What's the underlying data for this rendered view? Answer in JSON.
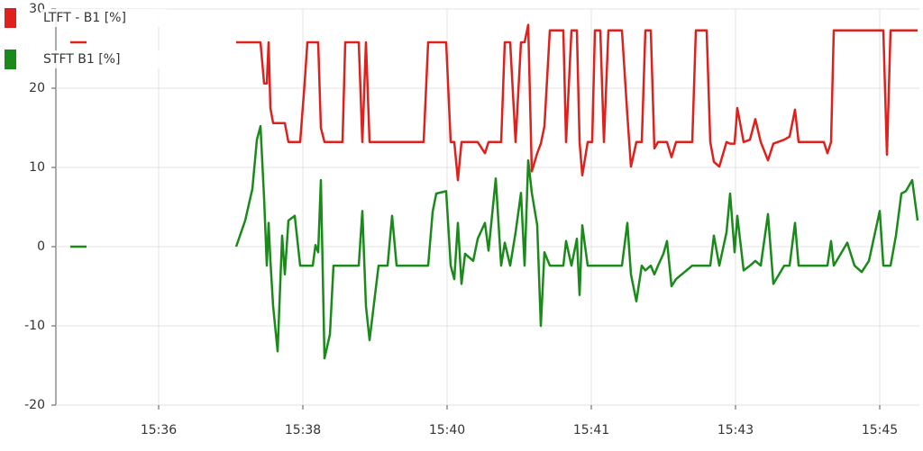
{
  "chart_data": {
    "type": "line",
    "x": [
      35.42,
      35.6,
      36.5,
      37.26,
      37.36,
      37.44,
      37.49,
      37.53,
      37.57,
      37.6,
      37.62,
      37.64,
      37.67,
      37.72,
      37.77,
      37.8,
      37.84,
      37.91,
      37.97,
      38.02,
      38.05,
      38.11,
      38.14,
      38.17,
      38.2,
      38.24,
      38.3,
      38.34,
      38.44,
      38.47,
      38.62,
      38.66,
      38.7,
      38.74,
      38.84,
      38.94,
      38.99,
      39.04,
      39.34,
      39.39,
      39.44,
      39.48,
      39.59,
      39.64,
      39.68,
      39.72,
      39.76,
      39.8,
      39.89,
      39.94,
      40.02,
      40.06,
      40.14,
      40.2,
      40.24,
      40.3,
      40.36,
      40.42,
      40.46,
      40.5,
      40.54,
      40.6,
      40.64,
      40.68,
      40.74,
      40.89,
      40.92,
      40.98,
      41.04,
      41.07,
      41.1,
      41.16,
      41.21,
      41.24,
      41.3,
      41.34,
      41.39,
      41.49,
      41.54,
      41.6,
      41.64,
      41.7,
      41.76,
      41.8,
      41.86,
      41.9,
      41.94,
      42.0,
      42.04,
      42.09,
      42.14,
      42.32,
      42.36,
      42.48,
      42.52,
      42.56,
      42.62,
      42.7,
      42.74,
      42.79,
      42.82,
      42.89,
      42.96,
      43.02,
      43.08,
      43.16,
      43.22,
      43.34,
      43.4,
      43.46,
      43.5,
      43.64,
      43.78,
      43.82,
      43.86,
      43.89,
      44.04,
      44.12,
      44.2,
      44.28,
      44.4,
      44.44,
      44.48,
      44.52,
      44.58,
      44.64,
      44.69,
      44.76,
      44.82
    ],
    "series": [
      {
        "name": "LTFT - B1 [%]",
        "color": "#e0201c",
        "values": [
          25.8,
          25.8,
          null,
          25.8,
          25.8,
          25.8,
          25.8,
          25.8,
          20.6,
          20.6,
          25.8,
          17.5,
          15.6,
          15.6,
          15.6,
          15.6,
          13.2,
          13.2,
          13.2,
          20.7,
          25.8,
          25.8,
          25.8,
          25.8,
          15.0,
          13.2,
          13.2,
          13.2,
          13.2,
          25.8,
          25.8,
          13.2,
          25.8,
          13.2,
          13.2,
          13.2,
          13.2,
          13.2,
          13.2,
          25.8,
          25.8,
          25.8,
          25.8,
          13.2,
          13.2,
          8.4,
          13.2,
          13.2,
          13.2,
          13.2,
          11.8,
          13.2,
          13.2,
          13.2,
          25.8,
          25.8,
          13.2,
          25.8,
          25.8,
          28.0,
          9.5,
          11.8,
          13.0,
          15.2,
          27.3,
          27.3,
          13.2,
          27.3,
          27.3,
          13.2,
          9.0,
          13.2,
          13.2,
          27.3,
          27.3,
          13.2,
          27.3,
          27.3,
          27.3,
          16.6,
          10.1,
          13.2,
          13.2,
          27.3,
          27.3,
          12.4,
          13.2,
          13.2,
          13.2,
          11.3,
          13.2,
          13.2,
          27.3,
          27.3,
          13.2,
          10.7,
          10.1,
          13.2,
          13.0,
          13.0,
          17.5,
          13.2,
          13.5,
          16.1,
          13.2,
          10.9,
          13.0,
          13.5,
          13.9,
          17.3,
          13.2,
          13.2,
          13.2,
          11.8,
          13.2,
          27.3,
          27.3,
          27.3,
          27.3,
          27.3,
          27.3,
          27.3,
          11.6,
          27.3,
          27.3,
          27.3,
          27.3,
          27.3,
          27.3
        ]
      },
      {
        "name": "STFT B1 [%]",
        "color": "#1a8a1a",
        "values": [
          0,
          0,
          null,
          0,
          3.3,
          7.3,
          13.5,
          15.2,
          6.1,
          -2.4,
          3.0,
          -1.8,
          -7.5,
          -13.2,
          1.4,
          -3.5,
          3.3,
          3.9,
          -2.4,
          -2.4,
          -2.4,
          -2.4,
          0.2,
          -0.7,
          8.4,
          -14.1,
          -11.1,
          -2.4,
          -2.4,
          -2.4,
          -2.4,
          4.5,
          -7.5,
          -11.8,
          -2.4,
          -2.4,
          3.9,
          -2.4,
          -2.4,
          -2.4,
          4.4,
          6.7,
          7.0,
          -2.4,
          -4.1,
          3.0,
          -4.7,
          -0.9,
          -1.8,
          1.0,
          3.0,
          -0.5,
          8.6,
          -2.4,
          0.5,
          -2.4,
          1.8,
          6.8,
          -2.4,
          10.9,
          6.8,
          2.7,
          -10,
          -0.7,
          -2.4,
          -2.4,
          0.7,
          -2.4,
          1.0,
          -6.1,
          2.7,
          -2.4,
          -2.4,
          -2.4,
          -2.4,
          -2.4,
          -2.4,
          -2.4,
          -2.4,
          3.0,
          -3.5,
          -6.9,
          -2.4,
          -3.0,
          -2.4,
          -3.5,
          -2.4,
          -0.9,
          0.7,
          -5.0,
          -4.1,
          -2.4,
          -2.4,
          -2.4,
          -2.4,
          1.4,
          -2.4,
          1.8,
          6.7,
          -0.7,
          3.9,
          -3.0,
          -2.4,
          -1.8,
          -2.4,
          4.1,
          -4.7,
          -2.4,
          -2.4,
          3.0,
          -2.4,
          -2.4,
          -2.4,
          -2.4,
          0.7,
          -2.4,
          0.5,
          -2.4,
          -3.2,
          -1.8,
          4.5,
          -2.4,
          -2.4,
          -2.4,
          1.4,
          6.7,
          7.0,
          8.4,
          3.3
        ]
      }
    ],
    "xlim": [
      35.26,
      44.84
    ],
    "xticks": [
      {
        "value": 36.4,
        "label": "15:36"
      },
      {
        "value": 38.0,
        "label": "15:38"
      },
      {
        "value": 39.6,
        "label": "15:40"
      },
      {
        "value": 41.2,
        "label": "15:41"
      },
      {
        "value": 42.8,
        "label": "15:43"
      },
      {
        "value": 44.4,
        "label": "15:45"
      }
    ],
    "ylim": [
      -20,
      30
    ],
    "yticks": [
      -20,
      -10,
      0,
      10,
      20,
      30
    ],
    "grid": true,
    "legend": "top-left"
  }
}
